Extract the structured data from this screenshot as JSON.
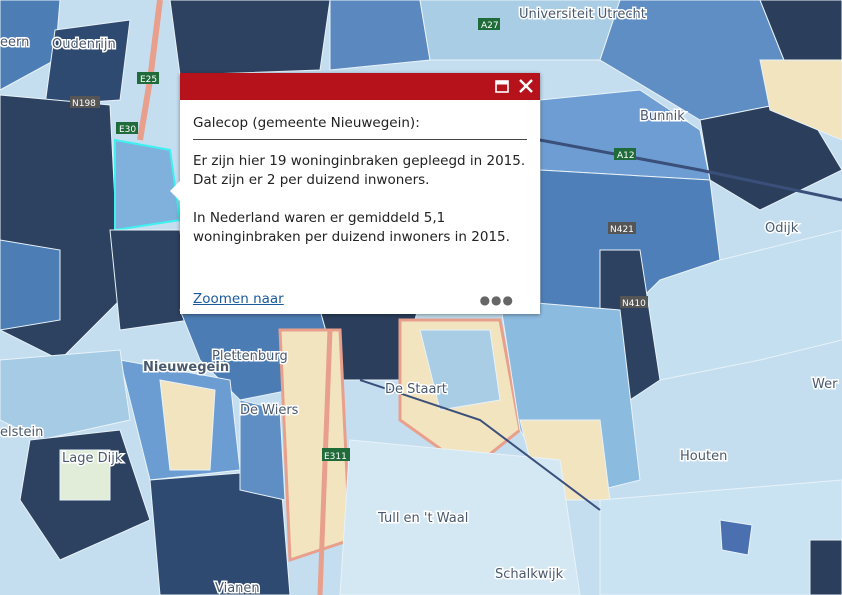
{
  "popup": {
    "title": "Galecop (gemeente Nieuwegein):",
    "paragraphs": [
      "Er zijn hier 19 woninginbraken gepleegd in 2015. Dat zijn er 2 per duizend inwoners.",
      "In Nederland waren er gemiddeld 5,1 woninginbraken per duizend inwoners in 2015."
    ],
    "link": "Zoomen naar"
  },
  "map": {
    "labels": [
      "eern",
      "Oudenrijn",
      "Universiteit Utrecht",
      "Bunnik",
      "Odijk",
      "Nieuwegein",
      "Plettenburg",
      "De Wiers",
      "elstein",
      "Lage Dijk",
      "De Staart",
      "Tull en 't Waal",
      "Schalkwijk",
      "Vianen",
      "Houten",
      "Wer"
    ],
    "roads": [
      "A27",
      "E25",
      "N198",
      "E30",
      "A12",
      "N421",
      "N410",
      "E311"
    ]
  }
}
